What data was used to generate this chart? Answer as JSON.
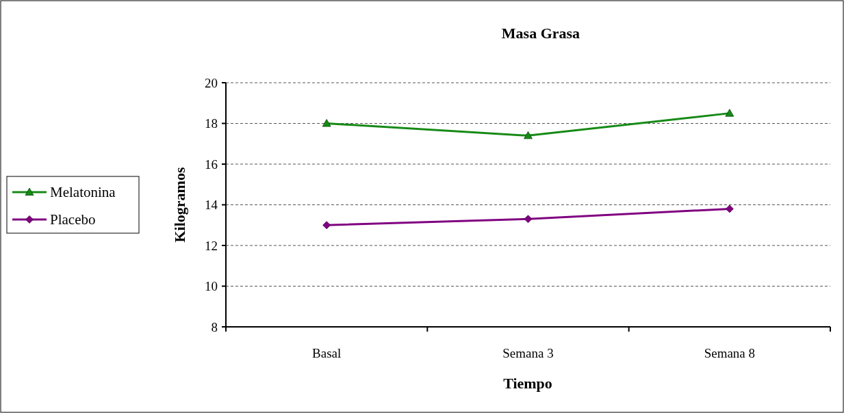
{
  "chart_data": {
    "type": "line",
    "title": "Masa Grasa",
    "xlabel": "Tiempo",
    "ylabel": "Kilogramos",
    "categories": [
      "Basal",
      "Semana 3",
      "Semana 8"
    ],
    "series": [
      {
        "name": "Melatonina",
        "color": "#168a16",
        "marker": "triangle",
        "values": [
          18.0,
          17.4,
          18.5
        ]
      },
      {
        "name": "Placebo",
        "color": "#800080",
        "marker": "diamond",
        "values": [
          13.0,
          13.3,
          13.8
        ]
      }
    ],
    "ylim": [
      8,
      20
    ],
    "yticks": [
      8,
      10,
      12,
      14,
      16,
      18,
      20
    ],
    "grid": "y",
    "legend": "left",
    "line_style": "solid"
  }
}
